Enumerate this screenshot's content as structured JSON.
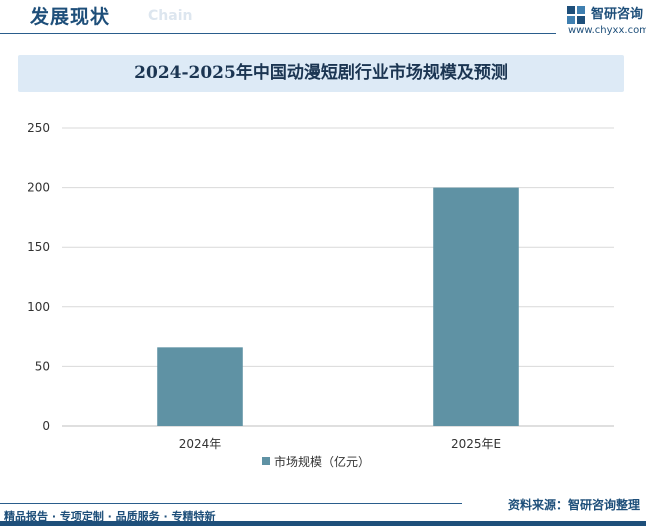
{
  "header": {
    "title": "发展现状",
    "subtitle": "Chain"
  },
  "brand": {
    "name": "智研咨询",
    "url": "www.chyxx.com"
  },
  "chart_data": {
    "type": "bar",
    "title": "2024-2025年中国动漫短剧行业市场规模及预测",
    "categories": [
      "2024年",
      "2025年E"
    ],
    "series": [
      {
        "name": "市场规模（亿元）",
        "values": [
          66,
          200
        ],
        "color": "#5f92a4"
      }
    ],
    "ylim": [
      0,
      250
    ],
    "yticks": [
      0,
      50,
      100,
      150,
      200,
      250
    ],
    "grid": true,
    "legend": "bottom"
  },
  "footer": {
    "services": "精品报告 · 专项定制 · 品质服务 · 专精特新",
    "source": "资料来源：智研咨询整理"
  }
}
